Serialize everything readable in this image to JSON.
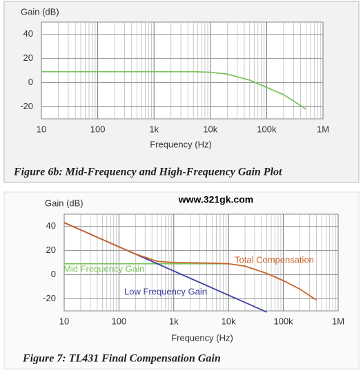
{
  "watermark": "www.321gk.com",
  "chart_data": [
    {
      "type": "line",
      "caption": "Figure 6b:  Mid-Frequency and High-Frequency Gain Plot",
      "ylabel": "Gain (dB)",
      "xlabel": "Frequency (Hz)",
      "log_x": true,
      "grid": true,
      "xlim": [
        10,
        1000000
      ],
      "ylim": [
        -30,
        50
      ],
      "xticks": [
        {
          "value": 10,
          "label": "10"
        },
        {
          "value": 100,
          "label": "100"
        },
        {
          "value": 1000,
          "label": "1k"
        },
        {
          "value": 10000,
          "label": "10k"
        },
        {
          "value": 100000,
          "label": "100k"
        },
        {
          "value": 1000000,
          "label": "1M"
        }
      ],
      "yticks": [
        -20,
        0,
        20,
        40
      ],
      "series": [
        {
          "color": "#7cc45a",
          "x": [
            10,
            100,
            1000,
            5000,
            10000,
            20000,
            50000,
            100000,
            200000,
            500000
          ],
          "values": [
            9,
            9,
            9,
            9,
            8.5,
            7,
            2,
            -4,
            -10,
            -22
          ]
        }
      ]
    },
    {
      "type": "line",
      "caption": "Figure 7:  TL431 Final Compensation Gain",
      "ylabel": "Gain (dB)",
      "xlabel": "Frequency (Hz)",
      "log_x": true,
      "grid": true,
      "xlim": [
        10,
        1000000
      ],
      "ylim": [
        -30,
        50
      ],
      "xticks": [
        {
          "value": 10,
          "label": "10"
        },
        {
          "value": 100,
          "label": "100"
        },
        {
          "value": 1000,
          "label": "1k"
        },
        {
          "value": 10000,
          "label": "10k"
        },
        {
          "value": 100000,
          "label": "100k"
        },
        {
          "value": 1000000,
          "label": "1M"
        }
      ],
      "yticks": [
        -20,
        0,
        20,
        40
      ],
      "series": [
        {
          "name": "Mid Frequency Gain",
          "color": "#7cc45a",
          "x": [
            10,
            100,
            1000,
            10000
          ],
          "values": [
            9,
            9,
            9,
            9
          ]
        },
        {
          "name": "Low Frequency Gain",
          "color": "#3a3f9e",
          "x": [
            10,
            50000
          ],
          "values": [
            43,
            -31
          ]
        },
        {
          "name": "Total Compensation",
          "color": "#c8622a",
          "x": [
            10,
            100,
            200,
            500,
            1000,
            5000,
            10000,
            20000,
            50000,
            100000,
            200000,
            400000
          ],
          "values": [
            43,
            23,
            17,
            11,
            10,
            9.5,
            9,
            7,
            1,
            -5,
            -12,
            -21
          ]
        }
      ]
    }
  ]
}
